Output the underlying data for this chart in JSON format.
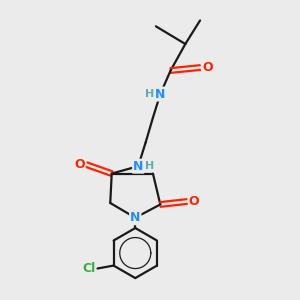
{
  "bg_color": "#ebebeb",
  "bond_color": "#1a1a1a",
  "N_color": "#1e90ff",
  "O_color": "#ff2200",
  "Cl_color": "#3aaf3a",
  "H_color": "#5faeae",
  "font_size": 9,
  "linewidth": 1.6,
  "figsize": [
    3.0,
    3.0
  ],
  "dpi": 100,
  "xlim": [
    0,
    10
  ],
  "ylim": [
    0,
    10
  ]
}
